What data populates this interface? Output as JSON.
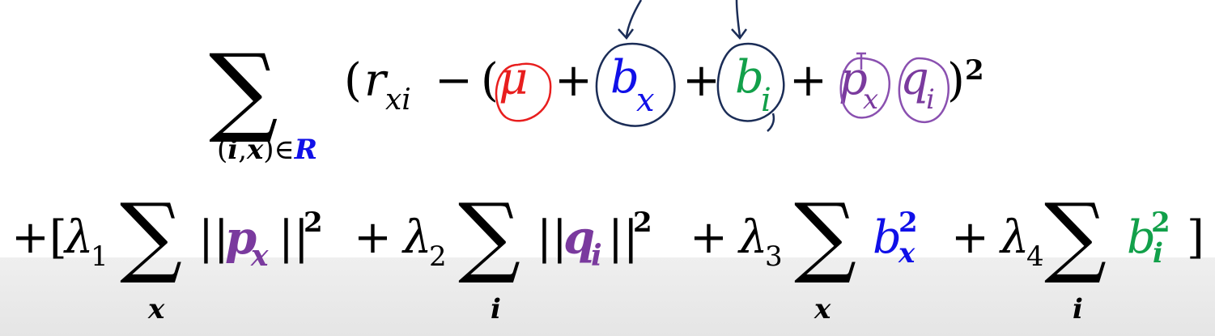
{
  "line1": {
    "sum_symbol": "∑",
    "sum_index": {
      "open": "(",
      "i": "i",
      "comma": ",",
      "x": "x",
      "close": ")",
      "in": "∈",
      "set": "R"
    },
    "open_paren": "(",
    "r": "r",
    "r_sub": "xi",
    "minus": "−",
    "open_paren2": "(",
    "mu": "μ",
    "plus": "+",
    "b": "b",
    "bx_sub": "x",
    "bi_sub": "i",
    "p": "p",
    "px_sub": "x",
    "q": "q",
    "qi_sub": "i",
    "close_paren": ")",
    "square": "2"
  },
  "line2": {
    "plus_bracket": "+[",
    "lambda": "λ",
    "l1_sub": "1",
    "l2_sub": "2",
    "l3_sub": "3",
    "l4_sub": "4",
    "sum_symbol": "∑",
    "norm": "||",
    "plus": "+",
    "sq": "2",
    "p": "p",
    "p_sub": "x",
    "q": "q",
    "q_sub": "i",
    "b": "b",
    "bx_sub": "x",
    "bi_sub": "i",
    "idx_x": "x",
    "idx_i": "i",
    "close_bracket": "]"
  },
  "colors": {
    "black": "#000000",
    "blue": "#1010e8",
    "green": "#12a04a",
    "purple": "#7a3a9e",
    "red_ink": "#e81e1e",
    "navy_ink": "#1b2d57",
    "purple_ink": "#8a50b0",
    "bar": "#e8e8e8"
  }
}
